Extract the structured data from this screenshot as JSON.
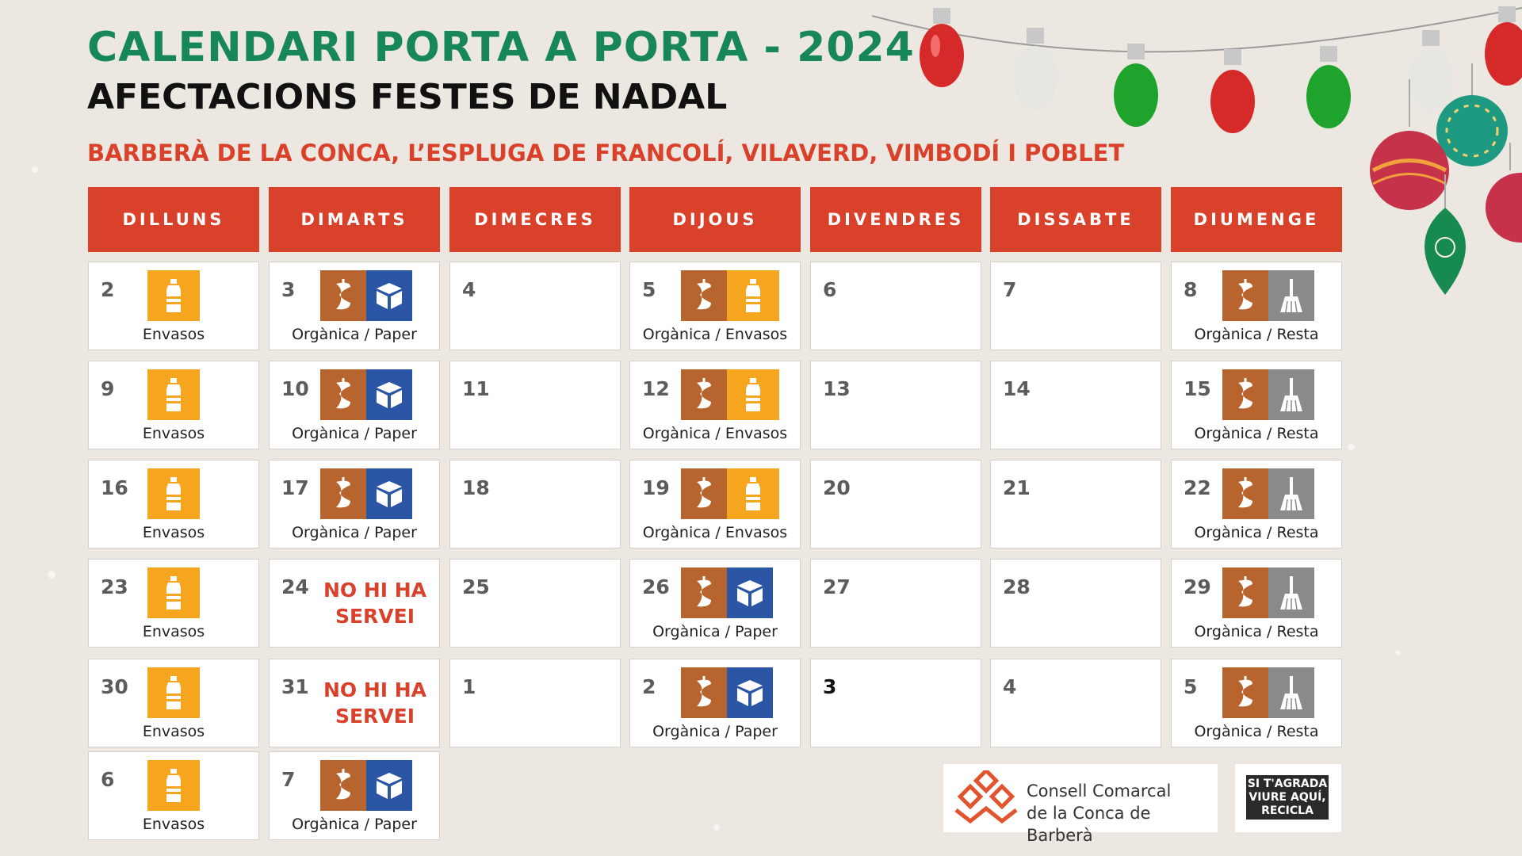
{
  "header": {
    "title": "CALENDARI PORTA A PORTA - 2024",
    "subtitle": "AFECTACIONS FESTES DE NADAL",
    "towns": "BARBERÀ DE LA CONCA, L’ESPLUGA DE FRANCOLÍ, VILAVERD, VIMBODÍ I POBLET"
  },
  "weekdays": [
    "DILLUNS",
    "DIMARTS",
    "DIMECRES",
    "DIJOUS",
    "DIVENDRES",
    "DISSABTE",
    "DIUMENGE"
  ],
  "colors": {
    "title_green": "#17875a",
    "accent_red": "#d9412b",
    "envasos": "#f5a51e",
    "organica": "#b8642e",
    "paper": "#2b56a5",
    "resta": "#8a8a8a"
  },
  "legend_icons": {
    "envasos": "bottle-icon",
    "organica": "apple-core-icon",
    "paper": "box-icon",
    "resta": "broom-icon"
  },
  "no_service_text": [
    "NO HI HA",
    "SERVEI"
  ],
  "weeks": [
    [
      {
        "day": "2",
        "types": [
          "envasos"
        ],
        "label": "Envasos"
      },
      {
        "day": "3",
        "types": [
          "organica",
          "paper"
        ],
        "label": "Orgànica / Paper"
      },
      {
        "day": "4",
        "types": [],
        "label": ""
      },
      {
        "day": "5",
        "types": [
          "organica",
          "envasos"
        ],
        "label": "Orgànica / Envasos"
      },
      {
        "day": "6",
        "types": [],
        "label": ""
      },
      {
        "day": "7",
        "types": [],
        "label": ""
      },
      {
        "day": "8",
        "types": [
          "organica",
          "resta"
        ],
        "label": "Orgànica / Resta"
      }
    ],
    [
      {
        "day": "9",
        "types": [
          "envasos"
        ],
        "label": "Envasos"
      },
      {
        "day": "10",
        "types": [
          "organica",
          "paper"
        ],
        "label": "Orgànica / Paper"
      },
      {
        "day": "11",
        "types": [],
        "label": ""
      },
      {
        "day": "12",
        "types": [
          "organica",
          "envasos"
        ],
        "label": "Orgànica / Envasos"
      },
      {
        "day": "13",
        "types": [],
        "label": ""
      },
      {
        "day": "14",
        "types": [],
        "label": ""
      },
      {
        "day": "15",
        "types": [
          "organica",
          "resta"
        ],
        "label": "Orgànica / Resta"
      }
    ],
    [
      {
        "day": "16",
        "types": [
          "envasos"
        ],
        "label": "Envasos"
      },
      {
        "day": "17",
        "types": [
          "organica",
          "paper"
        ],
        "label": "Orgànica / Paper"
      },
      {
        "day": "18",
        "types": [],
        "label": ""
      },
      {
        "day": "19",
        "types": [
          "organica",
          "envasos"
        ],
        "label": "Orgànica / Envasos"
      },
      {
        "day": "20",
        "types": [],
        "label": ""
      },
      {
        "day": "21",
        "types": [],
        "label": ""
      },
      {
        "day": "22",
        "types": [
          "organica",
          "resta"
        ],
        "label": "Orgànica / Resta"
      }
    ],
    [
      {
        "day": "23",
        "types": [
          "envasos"
        ],
        "label": "Envasos"
      },
      {
        "day": "24",
        "types": [],
        "label": "",
        "no_service": true
      },
      {
        "day": "25",
        "types": [],
        "label": ""
      },
      {
        "day": "26",
        "types": [
          "organica",
          "paper"
        ],
        "label": "Orgànica / Paper"
      },
      {
        "day": "27",
        "types": [],
        "label": ""
      },
      {
        "day": "28",
        "types": [],
        "label": ""
      },
      {
        "day": "29",
        "types": [
          "organica",
          "resta"
        ],
        "label": "Orgànica / Resta"
      }
    ],
    [
      {
        "day": "30",
        "types": [
          "envasos"
        ],
        "label": "Envasos"
      },
      {
        "day": "31",
        "types": [],
        "label": "",
        "no_service": true
      },
      {
        "day": "1",
        "types": [],
        "label": ""
      },
      {
        "day": "2",
        "types": [
          "organica",
          "paper"
        ],
        "label": "Orgànica / Paper"
      },
      {
        "day": "3",
        "types": [],
        "label": "",
        "dark": true
      },
      {
        "day": "4",
        "types": [],
        "label": ""
      },
      {
        "day": "5",
        "types": [
          "organica",
          "resta"
        ],
        "label": "Orgànica / Resta"
      }
    ],
    [
      {
        "day": "6",
        "types": [
          "envasos"
        ],
        "label": "Envasos"
      },
      {
        "day": "7",
        "types": [
          "organica",
          "paper"
        ],
        "label": "Orgànica / Paper"
      }
    ]
  ],
  "footer": {
    "council_line1": "Consell Comarcal",
    "council_line2": "de la Conca de Barberà",
    "campaign_line1": "SI T'AGRADA",
    "campaign_line2": "VIURE AQUÍ,",
    "campaign_line3": "RECICLA"
  }
}
